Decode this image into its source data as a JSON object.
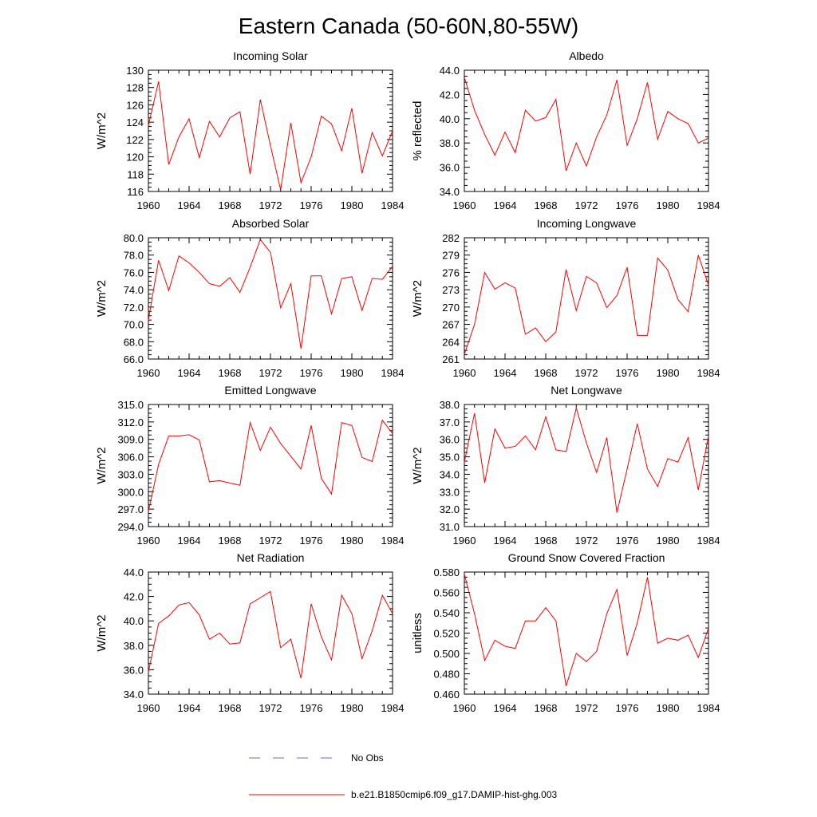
{
  "title": "Eastern Canada (50-60N,80-55W)",
  "legend": [
    {
      "label": "No Obs",
      "color": "#6a6ad8",
      "dash": true
    },
    {
      "label": "b.e21.B1850cmip6.f09_g17.DAMIP-hist-ghg.003",
      "color": "#ff0000",
      "dash": false
    }
  ],
  "chart_data": [
    {
      "type": "line",
      "title": "Incoming Solar",
      "ylabel": "W/m^2",
      "xlim": [
        1960,
        1984
      ],
      "ylim": [
        116,
        130
      ],
      "xticks": [
        1960,
        1964,
        1968,
        1972,
        1976,
        1980,
        1984
      ],
      "xtick_labels": [
        "1960",
        "1964",
        "1968",
        "1972",
        "1976",
        "1980",
        "1984"
      ],
      "yticks": [
        116,
        118,
        120,
        122,
        124,
        126,
        128,
        130
      ],
      "ytick_labels": [
        "116",
        "118",
        "120",
        "122",
        "124",
        "126",
        "128",
        "130"
      ],
      "series": [
        {
          "color": "#ff0000",
          "x": [
            1960,
            1961,
            1962,
            1963,
            1964,
            1965,
            1966,
            1967,
            1968,
            1969,
            1970,
            1971,
            1972,
            1973,
            1974,
            1975,
            1976,
            1977,
            1978,
            1979,
            1980,
            1981,
            1982,
            1983,
            1984
          ],
          "values": [
            123.6,
            128.7,
            119.1,
            122.3,
            124.4,
            119.9,
            124.1,
            122.3,
            124.5,
            125.2,
            118.0,
            126.6,
            121.3,
            116.2,
            123.9,
            117.0,
            120.0,
            124.7,
            123.8,
            120.7,
            125.6,
            118.1,
            122.8,
            120.1,
            123.0
          ]
        }
      ]
    },
    {
      "type": "line",
      "title": "Albedo",
      "ylabel": "% reflected",
      "xlim": [
        1960,
        1984
      ],
      "ylim": [
        34,
        44
      ],
      "xticks": [
        1960,
        1964,
        1968,
        1972,
        1976,
        1980,
        1984
      ],
      "xtick_labels": [
        "1960",
        "1964",
        "1968",
        "1972",
        "1976",
        "1980",
        "1984"
      ],
      "yticks": [
        34,
        36,
        38,
        40,
        42,
        44
      ],
      "ytick_labels": [
        "34.0",
        "36.0",
        "38.0",
        "40.0",
        "42.0",
        "44.0"
      ],
      "series": [
        {
          "color": "#ff0000",
          "x": [
            1960,
            1961,
            1962,
            1963,
            1964,
            1965,
            1966,
            1967,
            1968,
            1969,
            1970,
            1971,
            1972,
            1973,
            1974,
            1975,
            1976,
            1977,
            1978,
            1979,
            1980,
            1981,
            1982,
            1983,
            1984
          ],
          "values": [
            43.4,
            40.7,
            38.7,
            37.0,
            38.9,
            37.2,
            40.7,
            39.8,
            40.1,
            41.6,
            35.7,
            38.0,
            36.1,
            38.5,
            40.3,
            43.2,
            37.8,
            40.0,
            43.0,
            38.3,
            40.6,
            40.0,
            39.6,
            38.0,
            38.4
          ]
        }
      ]
    },
    {
      "type": "line",
      "title": "Absorbed Solar",
      "ylabel": "W/m^2",
      "xlim": [
        1960,
        1984
      ],
      "ylim": [
        66,
        80
      ],
      "xticks": [
        1960,
        1964,
        1968,
        1972,
        1976,
        1980,
        1984
      ],
      "xtick_labels": [
        "1960",
        "1964",
        "1968",
        "1972",
        "1976",
        "1980",
        "1984"
      ],
      "yticks": [
        66,
        68,
        70,
        72,
        74,
        76,
        78,
        80
      ],
      "ytick_labels": [
        "66.0",
        "68.0",
        "70.0",
        "72.0",
        "74.0",
        "76.0",
        "78.0",
        "80.0"
      ],
      "series": [
        {
          "color": "#ff0000",
          "x": [
            1960,
            1961,
            1962,
            1963,
            1964,
            1965,
            1966,
            1967,
            1968,
            1969,
            1970,
            1971,
            1972,
            1973,
            1974,
            1975,
            1976,
            1977,
            1978,
            1979,
            1980,
            1981,
            1982,
            1983,
            1984
          ],
          "values": [
            70.5,
            77.4,
            73.9,
            77.9,
            77.1,
            76.0,
            74.7,
            74.4,
            75.4,
            73.7,
            76.6,
            79.8,
            78.3,
            71.9,
            74.7,
            67.2,
            75.6,
            75.6,
            71.2,
            75.3,
            75.5,
            71.6,
            75.3,
            75.2,
            76.7
          ]
        }
      ]
    },
    {
      "type": "line",
      "title": "Incoming Longwave",
      "ylabel": "W/m^2",
      "xlim": [
        1960,
        1984
      ],
      "ylim": [
        261,
        282
      ],
      "xticks": [
        1960,
        1964,
        1968,
        1972,
        1976,
        1980,
        1984
      ],
      "xtick_labels": [
        "1960",
        "1964",
        "1968",
        "1972",
        "1976",
        "1980",
        "1984"
      ],
      "yticks": [
        261,
        264,
        267,
        270,
        273,
        276,
        279,
        282
      ],
      "ytick_labels": [
        "261",
        "264",
        "267",
        "270",
        "273",
        "276",
        "279",
        "282"
      ],
      "series": [
        {
          "color": "#ff0000",
          "x": [
            1960,
            1961,
            1962,
            1963,
            1964,
            1965,
            1966,
            1967,
            1968,
            1969,
            1970,
            1971,
            1972,
            1973,
            1974,
            1975,
            1976,
            1977,
            1978,
            1979,
            1980,
            1981,
            1982,
            1983,
            1984
          ],
          "values": [
            261.8,
            267.0,
            276.0,
            273.1,
            274.2,
            273.3,
            265.3,
            266.4,
            264.0,
            265.7,
            276.5,
            269.4,
            275.3,
            274.2,
            269.9,
            272.0,
            276.9,
            265.1,
            265.1,
            278.5,
            276.4,
            271.3,
            269.2,
            279.0,
            273.8
          ]
        }
      ]
    },
    {
      "type": "line",
      "title": "Emitted Longwave",
      "ylabel": "W/m^2",
      "xlim": [
        1960,
        1984
      ],
      "ylim": [
        294,
        315
      ],
      "xticks": [
        1960,
        1964,
        1968,
        1972,
        1976,
        1980,
        1984
      ],
      "xtick_labels": [
        "1960",
        "1964",
        "1968",
        "1972",
        "1976",
        "1980",
        "1984"
      ],
      "yticks": [
        294,
        297,
        300,
        303,
        306,
        309,
        312,
        315
      ],
      "ytick_labels": [
        "294.0",
        "297.0",
        "300.0",
        "303.0",
        "306.0",
        "309.0",
        "312.0",
        "315.0"
      ],
      "series": [
        {
          "color": "#ff0000",
          "x": [
            1960,
            1961,
            1962,
            1963,
            1964,
            1965,
            1966,
            1967,
            1968,
            1969,
            1970,
            1971,
            1972,
            1973,
            1974,
            1975,
            1976,
            1977,
            1978,
            1979,
            1980,
            1981,
            1982,
            1983,
            1984
          ],
          "values": [
            296.6,
            304.7,
            309.6,
            309.6,
            309.8,
            308.9,
            301.7,
            301.9,
            301.5,
            301.1,
            311.9,
            307.1,
            311.1,
            308.3,
            306.1,
            303.9,
            311.4,
            302.3,
            299.6,
            311.9,
            311.4,
            305.9,
            305.2,
            312.3,
            310.0
          ]
        }
      ]
    },
    {
      "type": "line",
      "title": "Net Longwave",
      "ylabel": "W/m^2",
      "xlim": [
        1960,
        1984
      ],
      "ylim": [
        31,
        38
      ],
      "xticks": [
        1960,
        1964,
        1968,
        1972,
        1976,
        1980,
        1984
      ],
      "xtick_labels": [
        "1960",
        "1964",
        "1968",
        "1972",
        "1976",
        "1980",
        "1984"
      ],
      "yticks": [
        31,
        32,
        33,
        34,
        35,
        36,
        37,
        38
      ],
      "ytick_labels": [
        "31.0",
        "32.0",
        "33.0",
        "34.0",
        "35.0",
        "36.0",
        "37.0",
        "38.0"
      ],
      "series": [
        {
          "color": "#ff0000",
          "x": [
            1960,
            1961,
            1962,
            1963,
            1964,
            1965,
            1966,
            1967,
            1968,
            1969,
            1970,
            1971,
            1972,
            1973,
            1974,
            1975,
            1976,
            1977,
            1978,
            1979,
            1980,
            1981,
            1982,
            1983,
            1984
          ],
          "values": [
            34.7,
            37.5,
            33.5,
            36.6,
            35.5,
            35.6,
            36.2,
            35.4,
            37.3,
            35.4,
            35.3,
            37.8,
            35.8,
            34.1,
            36.1,
            31.8,
            34.3,
            36.9,
            34.3,
            33.3,
            34.9,
            34.7,
            36.1,
            33.1,
            36.2
          ]
        }
      ]
    },
    {
      "type": "line",
      "title": "Net Radiation",
      "ylabel": "W/m^2",
      "xlim": [
        1960,
        1984
      ],
      "ylim": [
        34,
        44
      ],
      "xticks": [
        1960,
        1964,
        1968,
        1972,
        1976,
        1980,
        1984
      ],
      "xtick_labels": [
        "1960",
        "1964",
        "1968",
        "1972",
        "1976",
        "1980",
        "1984"
      ],
      "yticks": [
        34,
        36,
        38,
        40,
        42,
        44
      ],
      "ytick_labels": [
        "34.0",
        "36.0",
        "38.0",
        "40.0",
        "42.0",
        "44.0"
      ],
      "series": [
        {
          "color": "#ff0000",
          "x": [
            1960,
            1961,
            1962,
            1963,
            1964,
            1965,
            1966,
            1967,
            1968,
            1969,
            1970,
            1971,
            1972,
            1973,
            1974,
            1975,
            1976,
            1977,
            1978,
            1979,
            1980,
            1981,
            1982,
            1983,
            1984
          ],
          "values": [
            35.8,
            39.8,
            40.4,
            41.3,
            41.5,
            40.5,
            38.5,
            39.0,
            38.1,
            38.2,
            41.4,
            41.9,
            42.4,
            37.8,
            38.5,
            35.3,
            41.4,
            38.7,
            36.8,
            42.1,
            40.6,
            36.9,
            39.2,
            42.1,
            40.6
          ]
        }
      ]
    },
    {
      "type": "line",
      "title": "Ground Snow Covered Fraction",
      "ylabel": "unitless",
      "xlim": [
        1960,
        1984
      ],
      "ylim": [
        0.46,
        0.58
      ],
      "xticks": [
        1960,
        1964,
        1968,
        1972,
        1976,
        1980,
        1984
      ],
      "xtick_labels": [
        "1960",
        "1964",
        "1968",
        "1972",
        "1976",
        "1980",
        "1984"
      ],
      "yticks": [
        0.46,
        0.48,
        0.5,
        0.52,
        0.54,
        0.56,
        0.58
      ],
      "ytick_labels": [
        "0.460",
        "0.480",
        "0.500",
        "0.520",
        "0.540",
        "0.560",
        "0.580"
      ],
      "series": [
        {
          "color": "#ff0000",
          "x": [
            1960,
            1961,
            1962,
            1963,
            1964,
            1965,
            1966,
            1967,
            1968,
            1969,
            1970,
            1971,
            1972,
            1973,
            1974,
            1975,
            1976,
            1977,
            1978,
            1979,
            1980,
            1981,
            1982,
            1983,
            1984
          ],
          "values": [
            0.578,
            0.539,
            0.493,
            0.513,
            0.507,
            0.505,
            0.532,
            0.532,
            0.545,
            0.532,
            0.468,
            0.5,
            0.492,
            0.502,
            0.539,
            0.563,
            0.498,
            0.53,
            0.575,
            0.51,
            0.515,
            0.513,
            0.518,
            0.496,
            0.525
          ]
        }
      ]
    }
  ]
}
